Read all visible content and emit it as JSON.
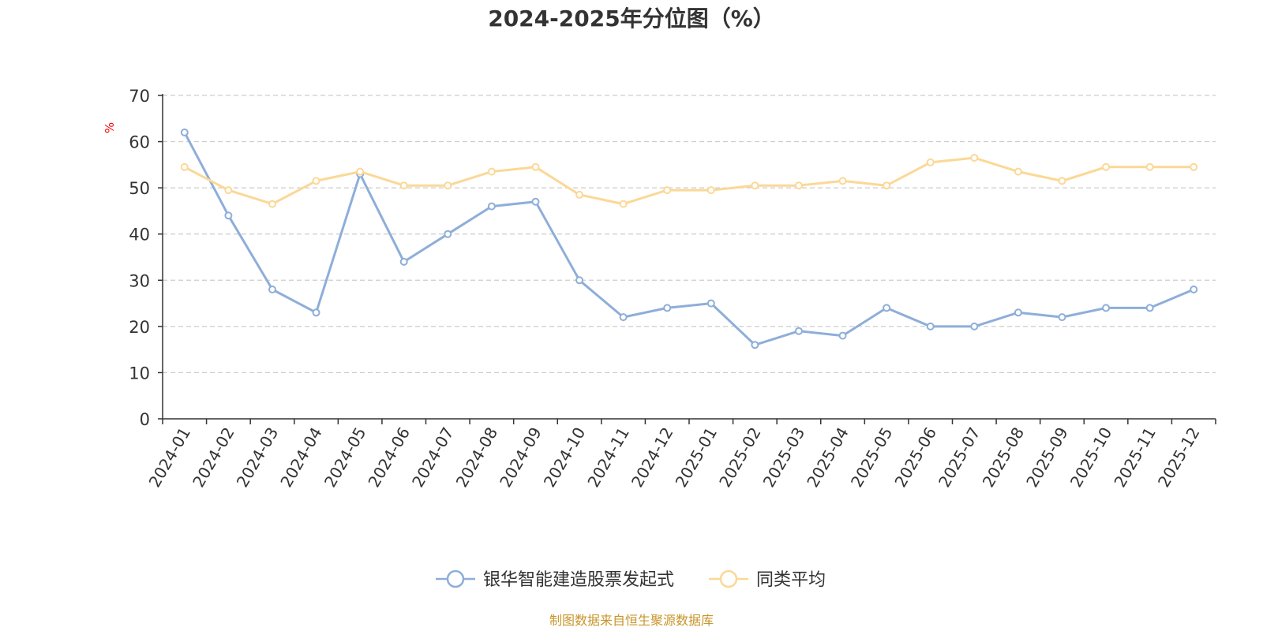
{
  "chart_data": {
    "type": "line",
    "title": "2024-2025年分位图（%）",
    "y_unit": "%",
    "ylim": [
      0,
      70
    ],
    "y_ticks": [
      0,
      10,
      20,
      30,
      40,
      50,
      60,
      70
    ],
    "grid": true,
    "legend_position": "bottom-center",
    "categories": [
      "2024-01",
      "2024-02",
      "2024-03",
      "2024-04",
      "2024-05",
      "2024-06",
      "2024-07",
      "2024-08",
      "2024-09",
      "2024-10",
      "2024-11",
      "2024-12",
      "2025-01",
      "2025-02",
      "2025-03",
      "2025-04",
      "2025-05",
      "2025-06",
      "2025-07",
      "2025-08",
      "2025-09",
      "2025-10",
      "2025-11",
      "2025-12"
    ],
    "series": [
      {
        "name": "银华智能建造股票发起式",
        "color": "#8eaed9",
        "values": [
          62,
          44,
          28,
          23,
          53,
          34,
          40,
          46,
          47,
          30,
          22,
          24,
          25,
          16,
          19,
          18,
          24,
          20,
          20,
          23,
          22,
          24,
          24,
          28
        ]
      },
      {
        "name": "同类平均",
        "color": "#fbd896",
        "values": [
          54.5,
          49.5,
          46.5,
          51.5,
          53.5,
          50.5,
          50.5,
          53.5,
          54.5,
          48.5,
          46.5,
          49.5,
          49.5,
          50.5,
          50.5,
          51.5,
          50.5,
          55.5,
          56.5,
          53.5,
          51.5,
          54.5,
          54.5,
          54.5
        ]
      }
    ],
    "source_note": "制图数据来自恒生聚源数据库",
    "source_color": "#c8952a"
  }
}
